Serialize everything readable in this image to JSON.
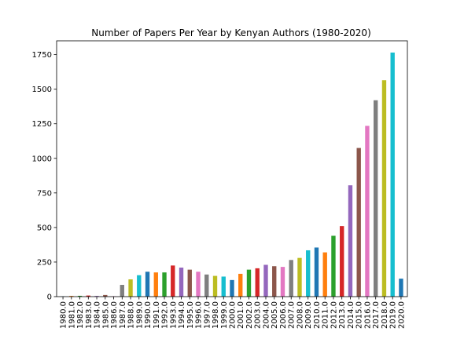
{
  "chart_data": {
    "type": "bar",
    "title": "Number of Papers Per Year by Kenyan Authors (1980-2020)",
    "xlabel": "",
    "ylabel": "",
    "ylim": [
      0,
      1850
    ],
    "yticks": [
      0,
      250,
      500,
      750,
      1000,
      1250,
      1500,
      1750
    ],
    "categories": [
      "1980.0",
      "1981.0",
      "1982.0",
      "1983.0",
      "1984.0",
      "1985.0",
      "1986.0",
      "1987.0",
      "1988.0",
      "1989.0",
      "1990.0",
      "1991.0",
      "1992.0",
      "1993.0",
      "1994.0",
      "1995.0",
      "1996.0",
      "1997.0",
      "1998.0",
      "1999.0",
      "2000.0",
      "2001.0",
      "2002.0",
      "2003.0",
      "2004.0",
      "2005.0",
      "2006.0",
      "2007.0",
      "2008.0",
      "2009.0",
      "2010.0",
      "2011.0",
      "2012.0",
      "2013.0",
      "2014.0",
      "2015.0",
      "2016.0",
      "2017.0",
      "2018.0",
      "2019.0",
      "2020.0"
    ],
    "values": [
      2,
      5,
      6,
      8,
      5,
      12,
      3,
      85,
      125,
      155,
      180,
      175,
      175,
      225,
      210,
      195,
      180,
      160,
      150,
      145,
      120,
      165,
      195,
      205,
      230,
      220,
      215,
      265,
      280,
      335,
      355,
      320,
      440,
      510,
      805,
      1075,
      1235,
      1420,
      1565,
      1765,
      130
    ],
    "colors": [
      "#1f77b4",
      "#ff7f0e",
      "#2ca02c",
      "#d62728",
      "#9467bd",
      "#8c564b",
      "#e377c2",
      "#7f7f7f",
      "#bcbd22",
      "#17becf"
    ],
    "grid": false,
    "legend": "none"
  }
}
